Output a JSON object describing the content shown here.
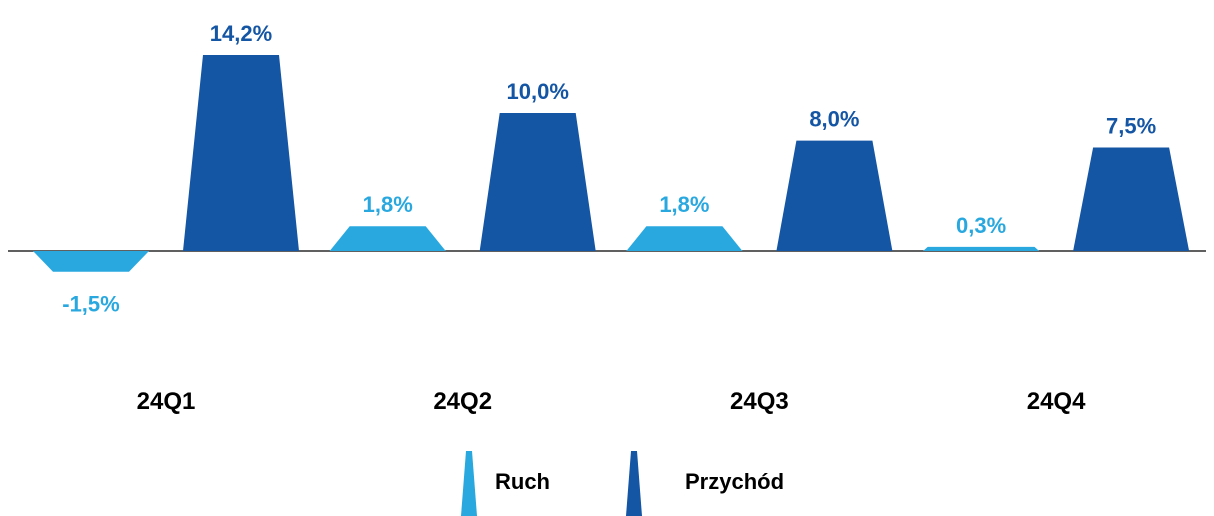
{
  "chart_data": {
    "type": "bar",
    "categories": [
      "24Q1",
      "24Q2",
      "24Q3",
      "24Q4"
    ],
    "series": [
      {
        "name": "Ruch",
        "values": [
          -1.5,
          1.8,
          1.8,
          0.3
        ],
        "labels": [
          "-1,5%",
          "1,8%",
          "1,8%",
          "0,3%"
        ],
        "color": "#29A8E0"
      },
      {
        "name": "Przychód",
        "values": [
          14.2,
          10.0,
          8.0,
          7.5
        ],
        "labels": [
          "14,2%",
          "10,0%",
          "8,0%",
          "7,5%"
        ],
        "color": "#1455A4"
      }
    ],
    "legend": {
      "placement": "bottom"
    },
    "colors": {
      "axis": "#000000",
      "category_text": "#000000"
    }
  }
}
